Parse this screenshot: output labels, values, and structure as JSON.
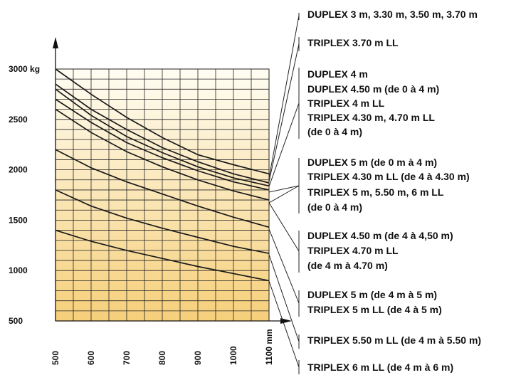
{
  "chart_data": {
    "type": "line",
    "x_unit": "mm",
    "y_unit": "kg",
    "xlim": [
      500,
      1100
    ],
    "ylim": [
      500,
      3000
    ],
    "x_ticks": [
      "500",
      "600",
      "700",
      "800",
      "900",
      "1000",
      "1100 mm"
    ],
    "y_ticks": [
      "3000 kg",
      "2500",
      "2000",
      "1500",
      "1000",
      "500"
    ],
    "grid": true,
    "series": [
      {
        "x": [
          500,
          600,
          700,
          800,
          900,
          1000,
          1100
        ],
        "y": [
          3000,
          2750,
          2520,
          2320,
          2150,
          2050,
          1960
        ]
      },
      {
        "x": [
          500,
          600,
          700,
          800,
          900,
          1000,
          1100
        ],
        "y": [
          2850,
          2600,
          2400,
          2220,
          2080,
          1960,
          1870
        ]
      },
      {
        "x": [
          500,
          600,
          700,
          800,
          900,
          1000,
          1100
        ],
        "y": [
          2800,
          2540,
          2330,
          2170,
          2030,
          1920,
          1840
        ]
      },
      {
        "x": [
          500,
          600,
          700,
          800,
          900,
          1000,
          1100
        ],
        "y": [
          2700,
          2470,
          2270,
          2120,
          1990,
          1880,
          1800
        ]
      },
      {
        "x": [
          500,
          600,
          700,
          800,
          900,
          1000,
          1100
        ],
        "y": [
          2600,
          2370,
          2180,
          2030,
          1900,
          1790,
          1700
        ]
      },
      {
        "x": [
          500,
          600,
          700,
          800,
          900,
          1000,
          1100
        ],
        "y": [
          2200,
          2020,
          1880,
          1760,
          1640,
          1530,
          1430
        ]
      },
      {
        "x": [
          500,
          600,
          700,
          800,
          900,
          1000,
          1100
        ],
        "y": [
          1800,
          1640,
          1520,
          1420,
          1330,
          1240,
          1170
        ]
      },
      {
        "x": [
          500,
          600,
          700,
          800,
          900,
          1000,
          1100
        ],
        "y": [
          1400,
          1290,
          1200,
          1120,
          1040,
          970,
          900
        ]
      }
    ],
    "legend": [
      {
        "lines": [
          "DUPLEX 3 m, 3.30 m, 3.50 m, 3.70 m"
        ]
      },
      {
        "lines": [
          "TRIPLEX 3.70 m LL"
        ]
      },
      {
        "lines": [
          "DUPLEX 4 m",
          "DUPLEX 4.50 m (de 0 à 4 m)",
          "TRIPLEX 4 m LL",
          "TRIPLEX 4.30 m, 4.70 m LL",
          "(de 0 à 4 m)"
        ]
      },
      {
        "lines": [
          "DUPLEX 5 m (de 0 m à 4 m)",
          "TRIPLEX 4.30 m LL (de 4 à 4.30 m)",
          "TRIPLEX 5 m, 5.50 m, 6 m LL",
          "(de 0 à 4 m)"
        ]
      },
      {
        "lines": [
          "DUPLEX 4.50 m (de 4 à 4,50 m)",
          "TRIPLEX 4.70 m LL",
          "(de 4 m à 4.70 m)"
        ]
      },
      {
        "lines": [
          "DUPLEX 5 m (de 4 m à 5 m)",
          "TRIPLEX 5 m LL (de 4 à 5 m)"
        ]
      },
      {
        "lines": [
          "TRIPLEX 5.50 m LL (de 4 m à 5.50 m)"
        ]
      },
      {
        "lines": [
          "TRIPLEX 6 m LL (de 4 m à 6 m)"
        ]
      }
    ]
  }
}
